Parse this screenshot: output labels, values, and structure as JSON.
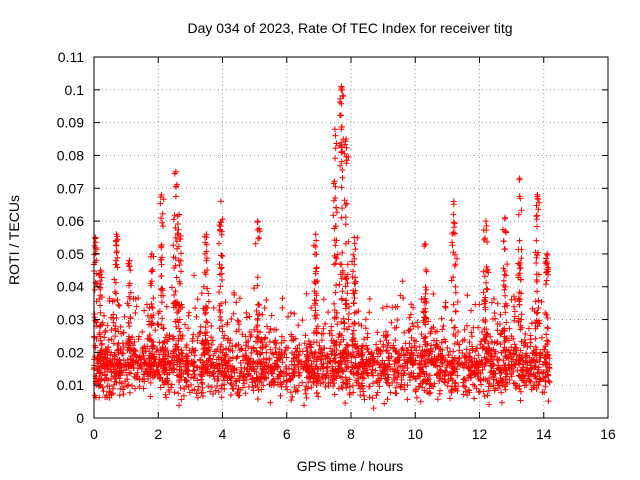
{
  "chart_data": {
    "type": "scatter",
    "title": "Day 034 of 2023, Rate Of TEC Index for receiver titg",
    "xlabel": "GPS time / hours",
    "ylabel": "ROTI / TECUs",
    "xlim": [
      0,
      16
    ],
    "ylim": [
      0,
      0.11
    ],
    "xticks": [
      0,
      2,
      4,
      6,
      8,
      10,
      12,
      14,
      16
    ],
    "xtick_labels": [
      "0",
      "2",
      "4",
      "6",
      "8",
      "10",
      "12",
      "14",
      "16"
    ],
    "yticks": [
      0,
      0.01,
      0.02,
      0.03,
      0.04,
      0.05,
      0.06,
      0.07,
      0.08,
      0.09,
      0.1,
      0.11
    ],
    "ytick_labels": [
      "0",
      "0.01",
      "0.02",
      "0.03",
      "0.04",
      "0.05",
      "0.06",
      "0.07",
      "0.08",
      "0.09",
      "0.1",
      "0.11"
    ],
    "grid": true,
    "marker": "+",
    "series": [
      {
        "name": "ROTI",
        "color": "#ff0000",
        "x_range": [
          0,
          14.2
        ],
        "typical_range": [
          0.005,
          0.03
        ],
        "peaks": [
          {
            "x": 0.05,
            "y": 0.055
          },
          {
            "x": 0.2,
            "y": 0.045
          },
          {
            "x": 0.7,
            "y": 0.056
          },
          {
            "x": 1.1,
            "y": 0.048
          },
          {
            "x": 1.8,
            "y": 0.05
          },
          {
            "x": 2.1,
            "y": 0.068
          },
          {
            "x": 2.55,
            "y": 0.075
          },
          {
            "x": 2.65,
            "y": 0.062
          },
          {
            "x": 3.5,
            "y": 0.056
          },
          {
            "x": 3.95,
            "y": 0.066
          },
          {
            "x": 5.1,
            "y": 0.06
          },
          {
            "x": 6.9,
            "y": 0.056
          },
          {
            "x": 7.5,
            "y": 0.088
          },
          {
            "x": 7.7,
            "y": 0.101
          },
          {
            "x": 7.85,
            "y": 0.085
          },
          {
            "x": 8.1,
            "y": 0.055
          },
          {
            "x": 10.3,
            "y": 0.053
          },
          {
            "x": 11.2,
            "y": 0.066
          },
          {
            "x": 12.2,
            "y": 0.06
          },
          {
            "x": 12.8,
            "y": 0.061
          },
          {
            "x": 13.25,
            "y": 0.073
          },
          {
            "x": 13.8,
            "y": 0.068
          },
          {
            "x": 14.1,
            "y": 0.05
          }
        ]
      }
    ]
  }
}
